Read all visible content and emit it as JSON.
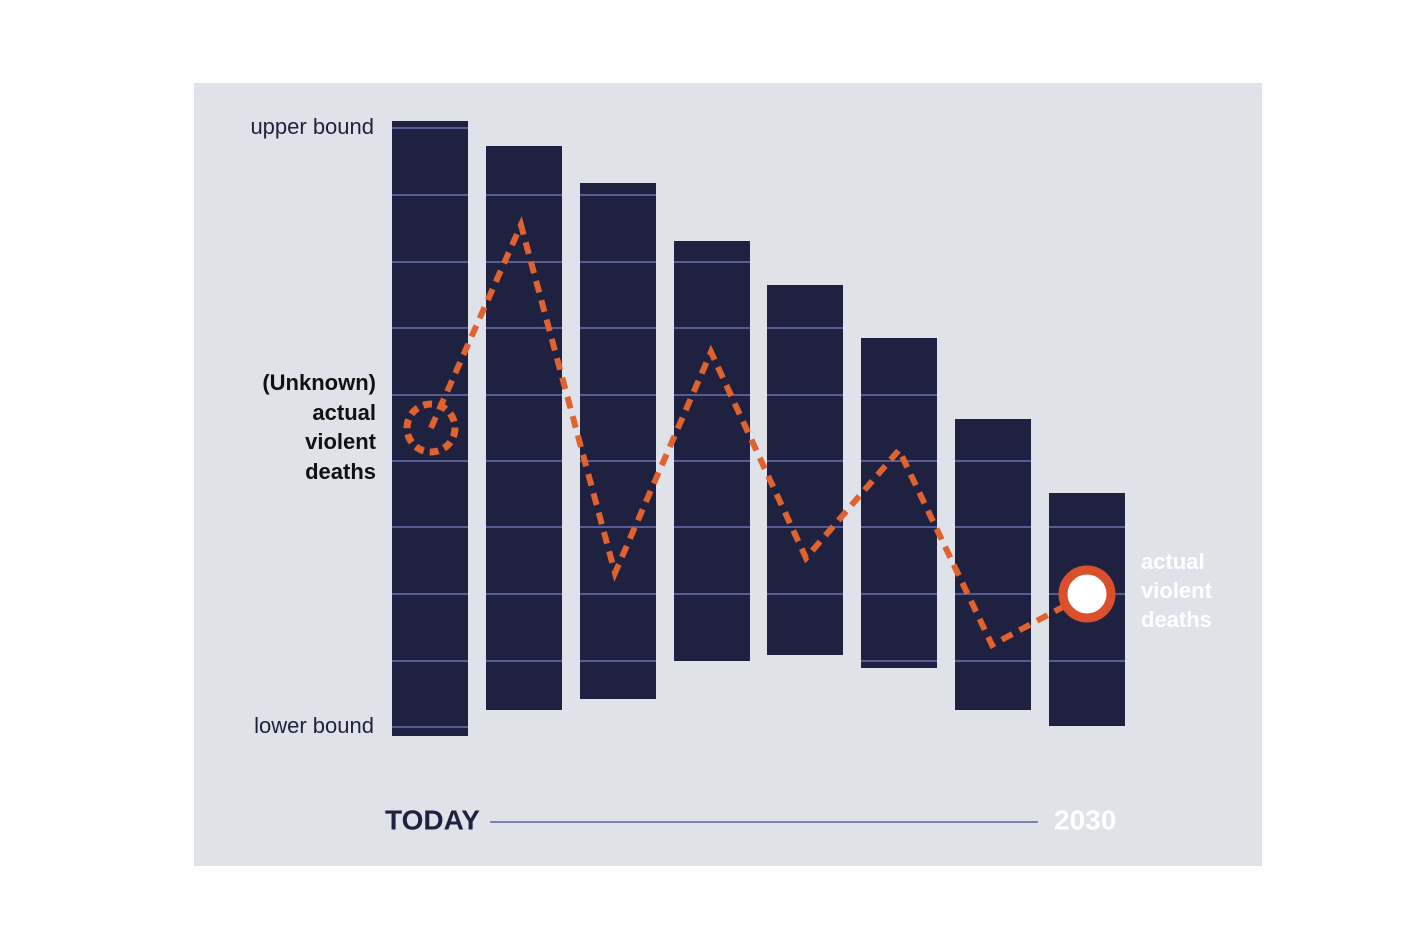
{
  "labels": {
    "upper": "upper bound",
    "lower": "lower bound",
    "unknown": [
      "(Unknown)",
      "actual",
      "violent",
      "deaths"
    ],
    "actual": [
      "actual",
      "violent",
      "deaths"
    ]
  },
  "timeline": {
    "start": "TODAY",
    "end": "2030"
  }
}
